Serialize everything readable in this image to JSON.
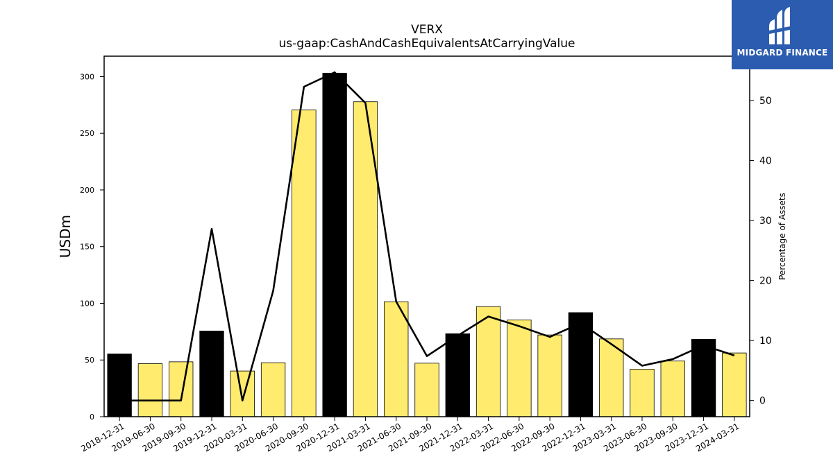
{
  "chart_data": {
    "type": "bar",
    "title": "VERX",
    "subtitle": "us-gaap:CashAndCashEquivalentsAtCarryingValue",
    "ylabel": "USDm",
    "y2label": "Percentage of Assets",
    "categories": [
      "2018-12-31",
      "2019-06-30",
      "2019-09-30",
      "2019-12-31",
      "2020-03-31",
      "2020-06-30",
      "2020-09-30",
      "2020-12-31",
      "2021-03-31",
      "2021-06-30",
      "2021-09-30",
      "2021-12-31",
      "2022-03-31",
      "2022-06-30",
      "2022-09-30",
      "2022-12-31",
      "2023-03-31",
      "2023-06-30",
      "2023-09-30",
      "2023-12-31",
      "2024-03-31"
    ],
    "series": [
      {
        "type": "bar",
        "axis": "left",
        "values": [
          55.4,
          46.8,
          48.4,
          75.6,
          40.3,
          47.6,
          270.5,
          303.0,
          277.8,
          101.4,
          47.2,
          73.2,
          97.1,
          85.4,
          72.1,
          91.8,
          68.6,
          41.9,
          49.1,
          68.2,
          56.2
        ],
        "colors": [
          "#000000",
          "#ffeb6e",
          "#ffeb6e",
          "#000000",
          "#ffeb6e",
          "#ffeb6e",
          "#ffeb6e",
          "#000000",
          "#ffeb6e",
          "#ffeb6e",
          "#ffeb6e",
          "#000000",
          "#ffeb6e",
          "#ffeb6e",
          "#ffeb6e",
          "#000000",
          "#ffeb6e",
          "#ffeb6e",
          "#ffeb6e",
          "#000000",
          "#ffeb6e"
        ]
      },
      {
        "type": "line",
        "axis": "right",
        "color": "#000000",
        "values": [
          0.0,
          0.0,
          0.0,
          28.6,
          0.0,
          18.3,
          52.3,
          54.7,
          49.6,
          16.5,
          7.4,
          10.8,
          14.0,
          12.4,
          10.6,
          12.9,
          9.4,
          5.8,
          6.9,
          9.2,
          7.5
        ]
      }
    ],
    "ylim": [
      0,
      318
    ],
    "yticks": [
      0,
      50,
      100,
      150,
      200,
      250,
      300
    ],
    "y2lim": [
      -2.7,
      57.4
    ],
    "y2ticks": [
      0,
      10,
      20,
      30,
      40,
      50
    ],
    "grid": false,
    "legend": "none"
  },
  "logo": {
    "text": "MIDGARD FINANCE"
  },
  "colors": {
    "highlight_bar": "#000000",
    "bar": "#ffeb6e",
    "line": "#000000",
    "logo_bg": "#2b5caf"
  }
}
